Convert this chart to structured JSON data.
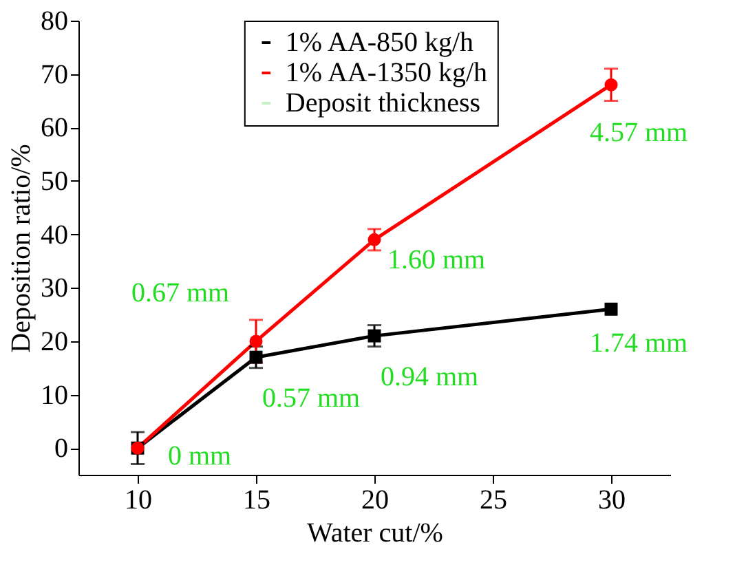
{
  "chart_data": {
    "type": "line",
    "xlabel": "Water cut/%",
    "ylabel": "Deposition ratio/%",
    "x": [
      10,
      15,
      20,
      30
    ],
    "series": [
      {
        "name": "1% AA-850 kg/h",
        "color": "#000000",
        "marker": "square",
        "values": [
          0,
          17,
          21,
          26
        ],
        "errors": [
          3,
          2,
          2,
          null
        ]
      },
      {
        "name": "1% AA-1350 kg/h",
        "color": "#ff0000",
        "marker": "circle",
        "values": [
          0,
          20,
          39,
          68
        ],
        "errors": [
          null,
          4,
          2,
          3
        ]
      },
      {
        "name": "Deposit thickness",
        "color": "#c8f0c8",
        "marker": "none",
        "values": [
          null,
          null,
          null,
          null
        ]
      }
    ],
    "xlim": [
      7.5,
      32.5
    ],
    "xticks": [
      10,
      15,
      20,
      25,
      30
    ],
    "ylim": [
      -5,
      80
    ],
    "yticks": [
      0,
      10,
      20,
      30,
      40,
      50,
      60,
      70,
      80
    ],
    "grid": false,
    "legend": "top",
    "annotations": [
      {
        "text": "0 mm",
        "x": 10,
        "y": 0
      },
      {
        "text": "0.57 mm",
        "x": 15,
        "y": 17
      },
      {
        "text": "0.67 mm",
        "x": 15,
        "y": 20
      },
      {
        "text": "0.94 mm",
        "x": 20,
        "y": 21
      },
      {
        "text": "1.60 mm",
        "x": 20,
        "y": 39
      },
      {
        "text": "1.74 mm",
        "x": 30,
        "y": 26
      },
      {
        "text": "4.57 mm",
        "x": 30,
        "y": 68
      }
    ]
  }
}
